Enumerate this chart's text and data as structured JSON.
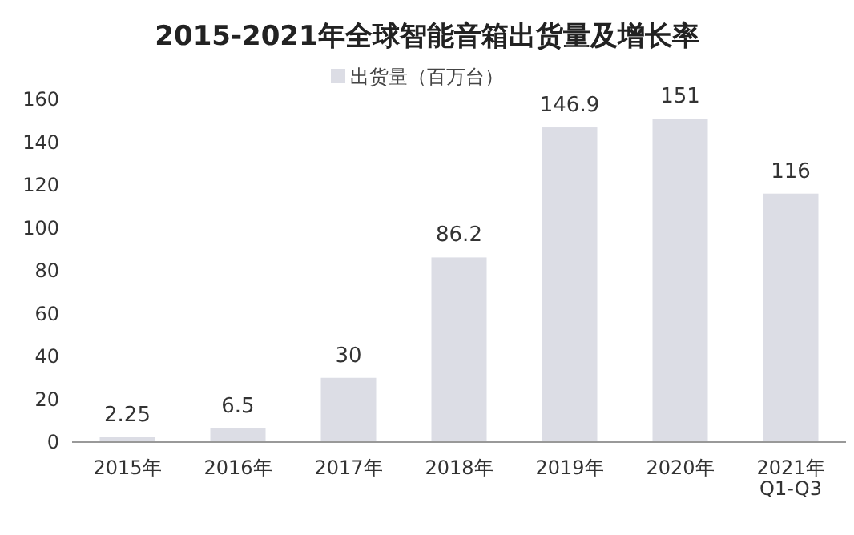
{
  "chart_data": {
    "type": "bar",
    "title": "2015-2021年全球智能音箱出货量及增长率",
    "categories": [
      "2015年",
      "2016年",
      "2017年",
      "2018年",
      "2019年",
      "2020年",
      "2021年 Q1-Q3"
    ],
    "series": [
      {
        "name": "出货量（百万台）",
        "color": "#dcdde5",
        "values": [
          2.25,
          6.5,
          30,
          86.2,
          146.9,
          151,
          116
        ]
      }
    ],
    "value_labels": [
      "2.25",
      "6.5",
      "30",
      "86.2",
      "146.9",
      "151",
      "116"
    ],
    "ylim": [
      0,
      160
    ],
    "yticks": [
      0,
      20,
      40,
      60,
      80,
      100,
      120,
      140,
      160
    ],
    "grid": false,
    "legend": "top"
  }
}
